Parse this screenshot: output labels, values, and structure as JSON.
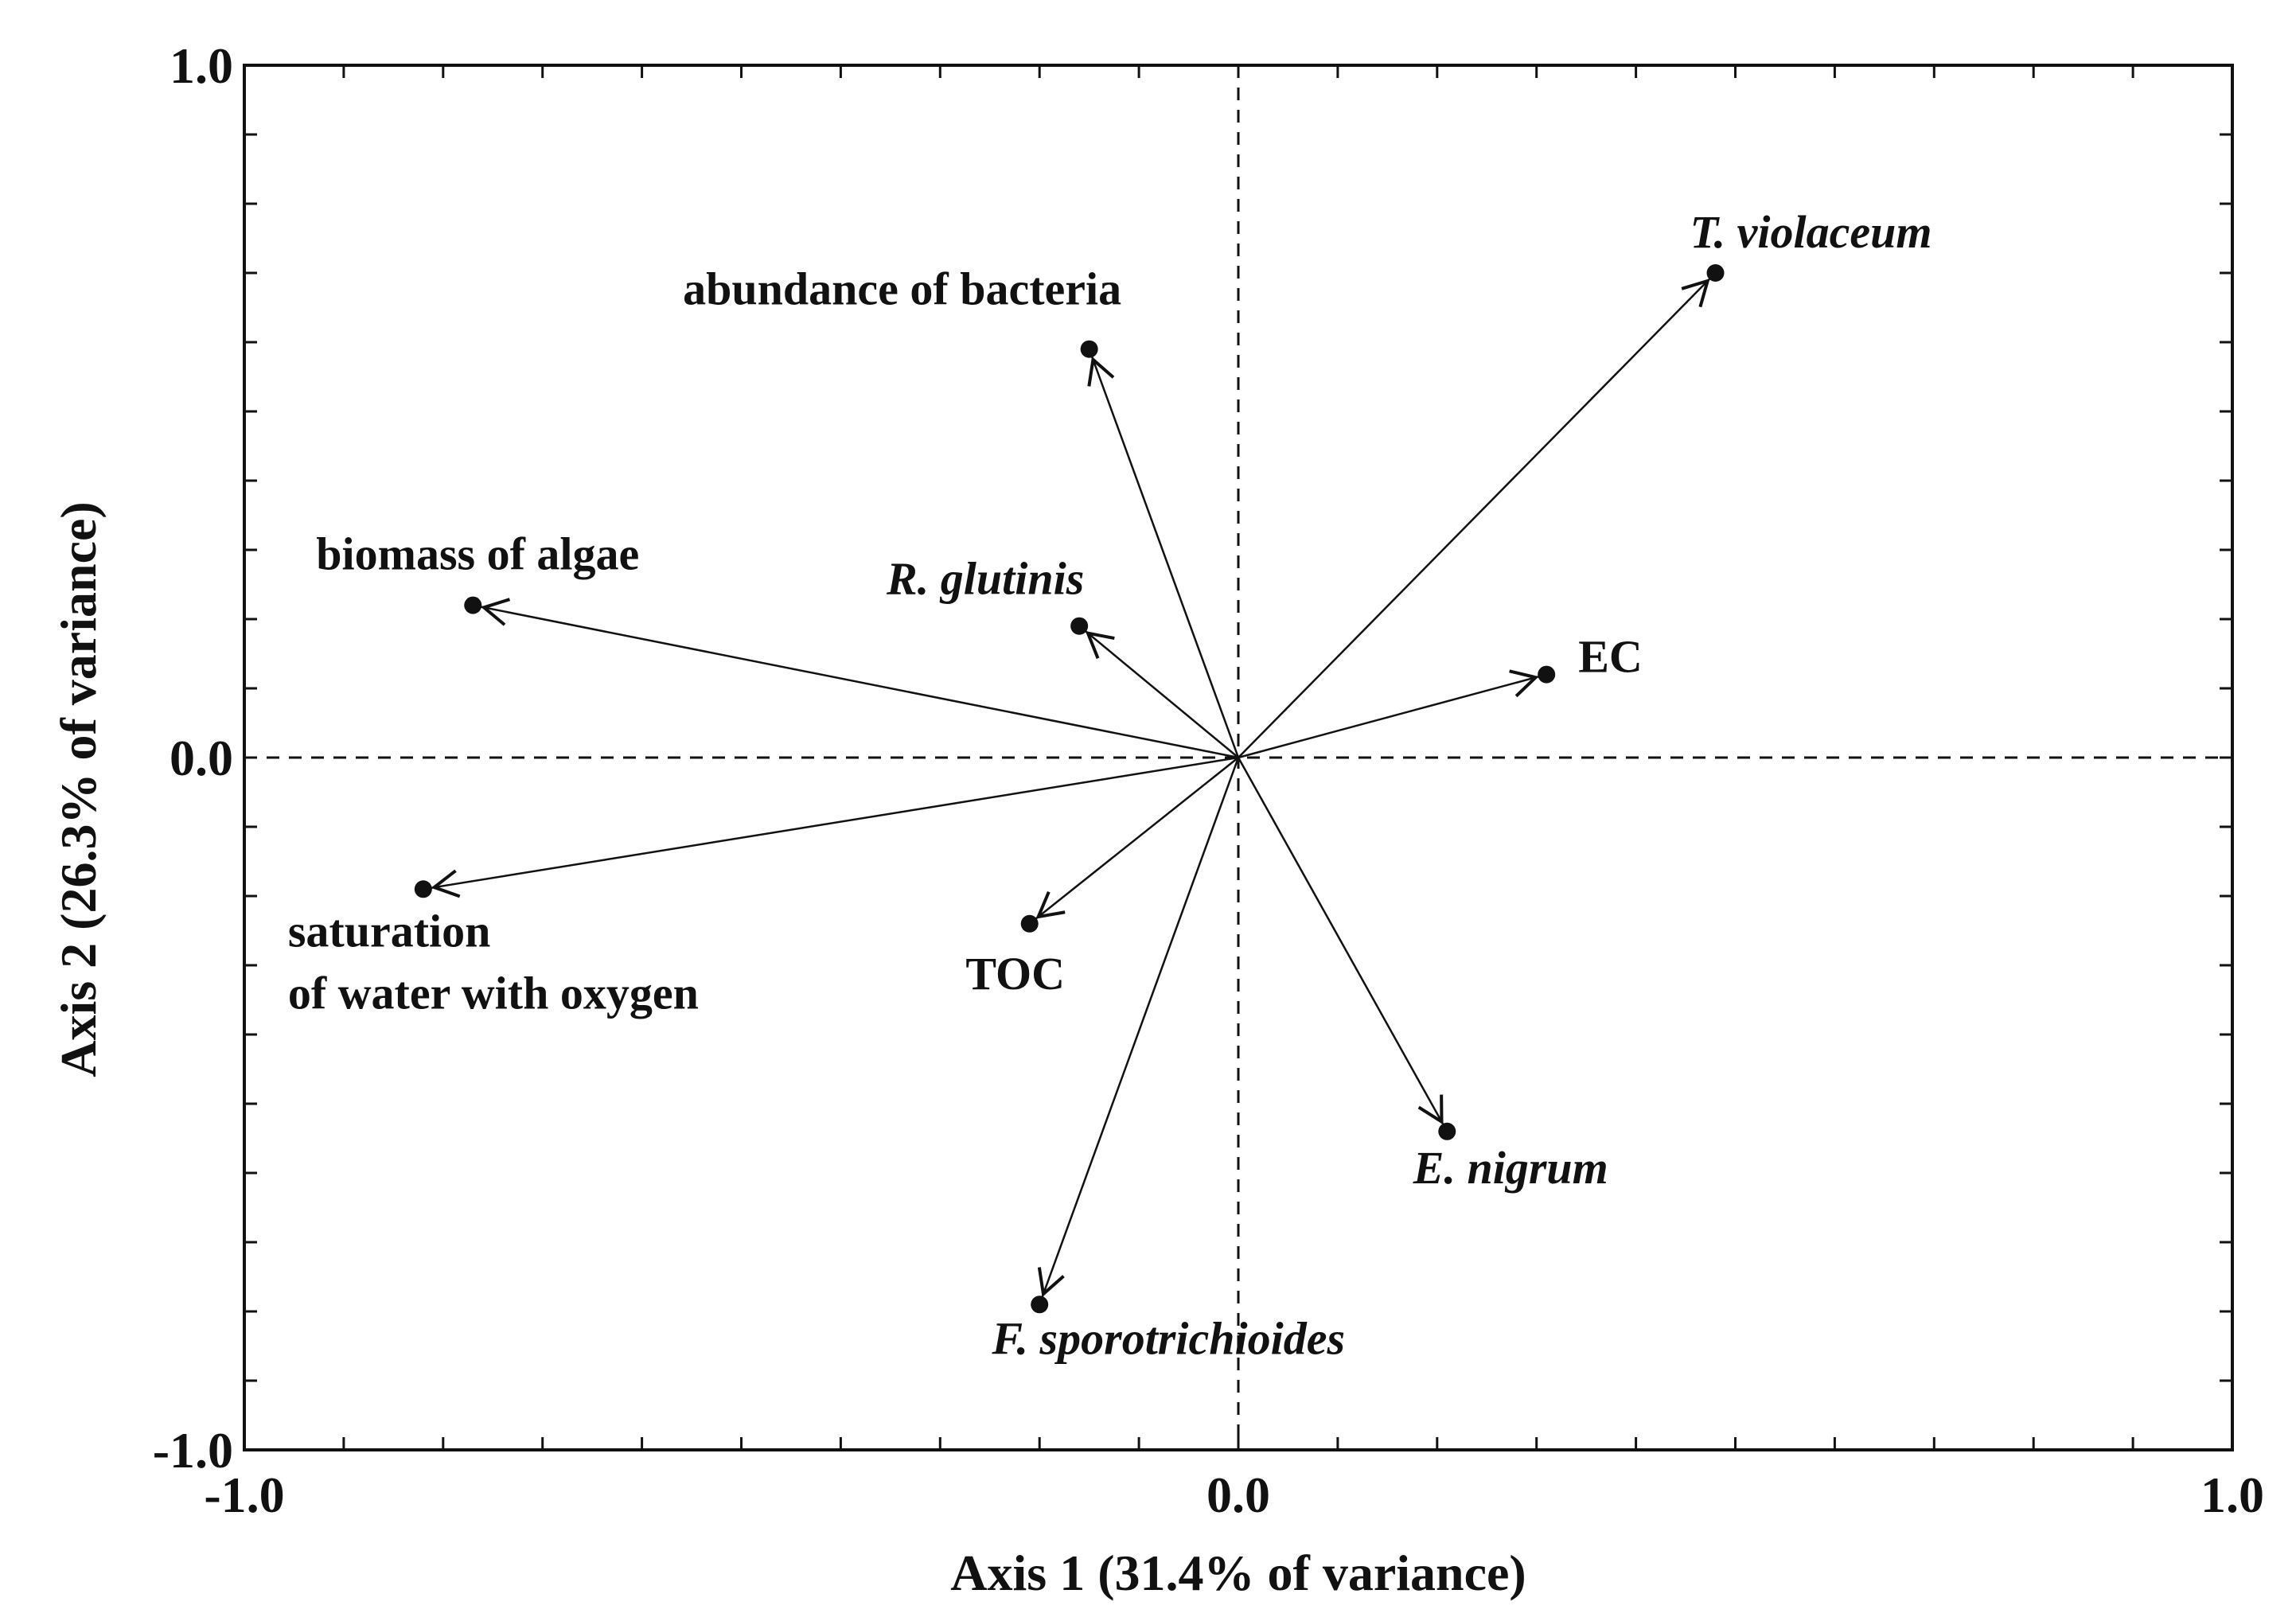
{
  "chart_data": {
    "type": "scatter",
    "subtype": "biplot-vectors",
    "xlabel": "Axis 1 (31.4% of variance)",
    "ylabel": "Axis 2 (26.3% of variance)",
    "xlim": [
      -1.0,
      1.0
    ],
    "ylim": [
      -1.0,
      1.0
    ],
    "x_ticks": [
      {
        "value": -1.0,
        "label": "-1.0"
      },
      {
        "value": 0.0,
        "label": "0.0"
      },
      {
        "value": 1.0,
        "label": "1.0"
      }
    ],
    "y_ticks": [
      {
        "value": 1.0,
        "label": "1.0"
      },
      {
        "value": 0.0,
        "label": "0.0"
      },
      {
        "value": -1.0,
        "label": "-1.0"
      }
    ],
    "zero_lines": "dashed",
    "vectors": [
      {
        "label": "T. violaceum",
        "x": 0.48,
        "y": 0.7,
        "italic": true
      },
      {
        "label": "abundance of bacteria",
        "x": -0.15,
        "y": 0.59,
        "italic": false
      },
      {
        "label": "R. glutinis",
        "x": -0.16,
        "y": 0.19,
        "italic": true
      },
      {
        "label": "biomass of algae",
        "x": -0.77,
        "y": 0.22,
        "italic": false
      },
      {
        "label": "EC",
        "x": 0.31,
        "y": 0.12,
        "italic": false
      },
      {
        "label": [
          "saturation",
          "of water with oxygen"
        ],
        "x": -0.82,
        "y": -0.19,
        "italic": false
      },
      {
        "label": "TOC",
        "x": -0.21,
        "y": -0.24,
        "italic": false
      },
      {
        "label": "E. nigrum",
        "x": 0.21,
        "y": -0.54,
        "italic": true
      },
      {
        "label": "F. sporotrichioides",
        "x": -0.2,
        "y": -0.79,
        "italic": true
      }
    ]
  }
}
